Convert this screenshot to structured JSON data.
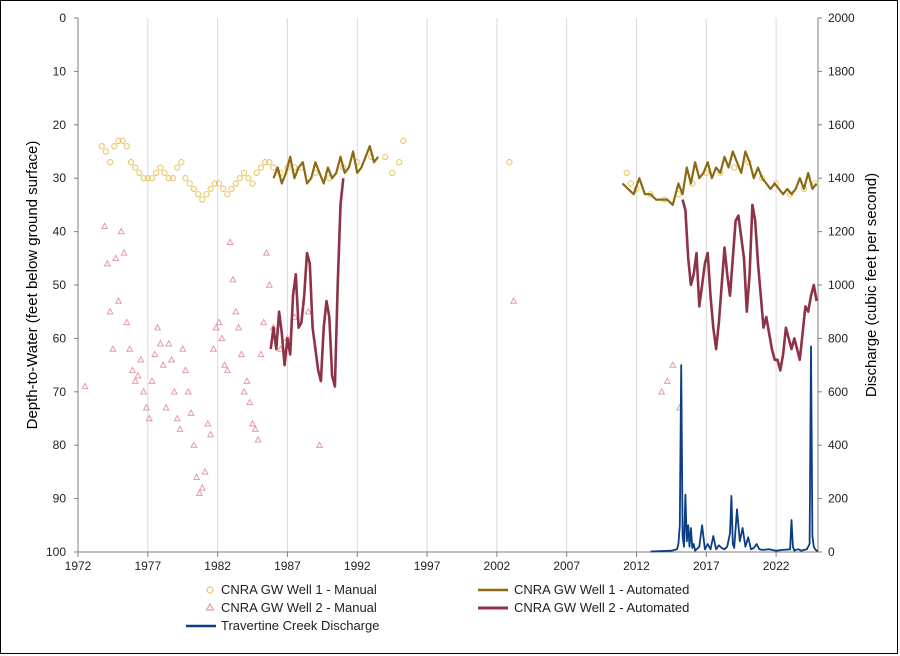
{
  "chart_data": {
    "type": "line",
    "title": "",
    "xlabel": "",
    "ylabel_left": "Depth-to-Water (feet below ground surface)",
    "ylabel_right": "Discharge (cubic feet per second)",
    "xlim": [
      1972,
      2025
    ],
    "x_ticks": [
      "1972",
      "1977",
      "1982",
      "1987",
      "1992",
      "1997",
      "2002",
      "2007",
      "2012",
      "2017",
      "2022"
    ],
    "ylim_left": [
      0,
      100
    ],
    "y_left_inverted": true,
    "y_left_ticks": [
      "0",
      "10",
      "20",
      "30",
      "40",
      "50",
      "60",
      "70",
      "80",
      "90",
      "100"
    ],
    "ylim_right": [
      0,
      2000
    ],
    "y_right_ticks": [
      "0",
      "200",
      "400",
      "600",
      "800",
      "1000",
      "1200",
      "1400",
      "1600",
      "1800",
      "2000"
    ],
    "grid": "vertical",
    "legend_position": "bottom",
    "colors": {
      "well1_manual": "#e8c66a",
      "well1_auto": "#8b6a12",
      "well2_manual": "#e89aa8",
      "well2_auto": "#8e3347",
      "discharge": "#0c3d85",
      "grid": "#d9d9d9"
    },
    "series": [
      {
        "name": "CNRA GW Well 1 - Manual",
        "axis": "left",
        "marker": "circle",
        "x": [
          1973.7,
          1974.0,
          1974.3,
          1974.6,
          1974.9,
          1975.2,
          1975.5,
          1975.8,
          1976.1,
          1976.4,
          1976.7,
          1977.0,
          1977.3,
          1977.6,
          1977.9,
          1978.2,
          1978.5,
          1978.8,
          1979.1,
          1979.4,
          1979.7,
          1980.0,
          1980.3,
          1980.6,
          1980.9,
          1981.2,
          1981.5,
          1981.8,
          1982.1,
          1982.4,
          1982.7,
          1983.0,
          1983.3,
          1983.6,
          1983.9,
          1984.2,
          1984.5,
          1984.8,
          1985.1,
          1985.4,
          1985.7,
          1986.0,
          1986.5,
          1987.0,
          1987.5,
          1988.0,
          1989.0,
          1990.0,
          1991.0,
          1992.0,
          1993.0,
          1994.0,
          1994.5,
          1995.0,
          1995.3,
          2002.9,
          2011.3,
          2011.6,
          2012.0,
          2013.0,
          2014.0,
          2015.0,
          2016.0,
          2017.0,
          2018.0,
          2019.0,
          2020.0,
          2021.0,
          2022.0,
          2023.0,
          2024.0,
          2024.8
        ],
        "y": [
          24,
          25,
          27,
          24,
          23,
          23,
          24,
          27,
          28,
          29,
          30,
          30,
          30,
          29,
          28,
          29,
          30,
          30,
          28,
          27,
          30,
          31,
          32,
          33,
          34,
          33,
          32,
          31,
          31,
          32,
          33,
          32,
          31,
          30,
          29,
          30,
          31,
          29,
          28,
          27,
          27,
          28,
          29,
          28,
          28,
          28,
          29,
          30,
          28,
          27,
          26,
          26,
          29,
          27,
          23,
          27,
          29,
          31,
          32,
          33,
          34,
          33,
          31,
          29,
          29,
          28,
          27,
          30,
          31,
          33,
          32,
          31
        ]
      },
      {
        "name": "CNRA GW Well 1 - Automated",
        "axis": "left",
        "marker": "line",
        "segments": [
          {
            "x": [
              1986.0,
              1986.3,
              1986.6,
              1986.9,
              1987.2,
              1987.5,
              1987.8,
              1988.1,
              1988.4,
              1988.7,
              1989.0,
              1989.3,
              1989.6,
              1989.9,
              1990.2,
              1990.5,
              1990.8,
              1991.1,
              1991.4,
              1991.7,
              1992.0,
              1992.3,
              1992.6,
              1992.9,
              1993.2,
              1993.5
            ],
            "y": [
              30,
              28,
              31,
              29,
              26,
              30,
              28,
              27,
              31,
              30,
              27,
              29,
              31,
              28,
              30,
              29,
              26,
              29,
              28,
              25,
              29,
              28,
              26,
              24,
              27,
              26
            ]
          },
          {
            "x": [
              2011.0,
              2011.4,
              2011.8,
              2012.2,
              2012.6,
              2013.0,
              2013.4,
              2013.8,
              2014.2,
              2014.6,
              2015.0,
              2015.3,
              2015.6,
              2015.9,
              2016.2,
              2016.5,
              2016.8,
              2017.1,
              2017.4,
              2017.7,
              2018.0,
              2018.3,
              2018.6,
              2018.9,
              2019.2,
              2019.5,
              2019.8,
              2020.1,
              2020.4,
              2020.7,
              2021.0,
              2021.3,
              2021.6,
              2021.9,
              2022.2,
              2022.5,
              2022.8,
              2023.1,
              2023.4,
              2023.7,
              2024.0,
              2024.3,
              2024.6,
              2024.9
            ],
            "y": [
              31,
              32,
              33,
              30,
              33,
              33,
              34,
              34,
              34,
              35,
              31,
              33,
              28,
              31,
              27,
              30,
              29,
              27,
              30,
              28,
              29,
              26,
              28,
              25,
              27,
              29,
              25,
              27,
              30,
              28,
              30,
              31,
              32,
              31,
              32,
              33,
              32,
              33,
              32,
              30,
              32,
              29,
              32,
              31
            ]
          }
        ]
      },
      {
        "name": "CNRA GW Well 2 - Manual",
        "axis": "left",
        "marker": "triangle",
        "x": [
          1972.5,
          1973.9,
          1974.1,
          1974.3,
          1974.5,
          1974.7,
          1974.9,
          1975.1,
          1975.3,
          1975.5,
          1975.7,
          1975.9,
          1976.1,
          1976.3,
          1976.5,
          1976.7,
          1976.9,
          1977.1,
          1977.3,
          1977.5,
          1977.7,
          1977.9,
          1978.1,
          1978.3,
          1978.5,
          1978.7,
          1978.9,
          1979.1,
          1979.3,
          1979.5,
          1979.7,
          1979.9,
          1980.1,
          1980.3,
          1980.5,
          1980.7,
          1980.9,
          1981.1,
          1981.3,
          1981.5,
          1981.7,
          1981.9,
          1982.1,
          1982.3,
          1982.5,
          1982.7,
          1982.9,
          1983.1,
          1983.3,
          1983.5,
          1983.7,
          1983.9,
          1984.1,
          1984.3,
          1984.5,
          1984.7,
          1984.9,
          1985.1,
          1985.3,
          1985.5,
          1985.7,
          1986.0,
          1986.5,
          1987.0,
          1987.5,
          1988.5,
          1989.3,
          2003.2,
          2013.8,
          2014.2,
          2014.6,
          2015.1
        ],
        "y": [
          69,
          39,
          46,
          55,
          62,
          45,
          53,
          40,
          44,
          57,
          62,
          66,
          68,
          67,
          64,
          70,
          73,
          75,
          68,
          63,
          58,
          61,
          65,
          73,
          61,
          64,
          70,
          75,
          77,
          62,
          66,
          70,
          74,
          80,
          86,
          89,
          88,
          85,
          76,
          78,
          62,
          58,
          57,
          60,
          65,
          66,
          42,
          49,
          55,
          58,
          63,
          70,
          68,
          72,
          76,
          77,
          79,
          63,
          57,
          44,
          50,
          58,
          62,
          60,
          56,
          55,
          80,
          53,
          70,
          68,
          65,
          73
        ],
        "y_extra_note": ""
      },
      {
        "name": "CNRA GW Well 2 - Automated",
        "axis": "left",
        "marker": "line",
        "segments": [
          {
            "x": [
              1985.8,
              1986.0,
              1986.2,
              1986.4,
              1986.6,
              1986.8,
              1987.0,
              1987.2,
              1987.4,
              1987.6,
              1987.8,
              1988.0,
              1988.2,
              1988.4,
              1988.6,
              1988.8,
              1989.0,
              1989.2,
              1989.4,
              1989.6,
              1989.8,
              1990.0,
              1990.2,
              1990.4,
              1990.6,
              1990.8,
              1991.0
            ],
            "y": [
              62,
              58,
              62,
              55,
              59,
              65,
              60,
              63,
              52,
              48,
              58,
              57,
              52,
              44,
              46,
              58,
              62,
              66,
              68,
              58,
              53,
              56,
              67,
              69,
              50,
              35,
              30
            ]
          },
          {
            "x": [
              2015.3,
              2015.5,
              2015.7,
              2015.9,
              2016.1,
              2016.3,
              2016.5,
              2016.7,
              2016.9,
              2017.1,
              2017.3,
              2017.5,
              2017.7,
              2017.9,
              2018.1,
              2018.3,
              2018.5,
              2018.7,
              2018.9,
              2019.1,
              2019.3,
              2019.5,
              2019.7,
              2019.9,
              2020.1,
              2020.3,
              2020.5,
              2020.7,
              2020.9,
              2021.1,
              2021.3,
              2021.5,
              2021.7,
              2021.9,
              2022.1,
              2022.3,
              2022.5,
              2022.7,
              2022.9,
              2023.1,
              2023.3,
              2023.5,
              2023.7,
              2023.9,
              2024.1,
              2024.3,
              2024.5,
              2024.7,
              2024.9
            ],
            "y": [
              34,
              36,
              45,
              50,
              48,
              44,
              54,
              50,
              46,
              44,
              52,
              58,
              62,
              57,
              50,
              43,
              48,
              52,
              45,
              38,
              37,
              41,
              45,
              55,
              48,
              35,
              38,
              46,
              52,
              58,
              56,
              59,
              62,
              64,
              64,
              66,
              63,
              58,
              60,
              62,
              60,
              62,
              64,
              59,
              54,
              55,
              52,
              50,
              53
            ]
          }
        ]
      },
      {
        "name": "Travertine Creek Discharge",
        "axis": "right",
        "marker": "line",
        "x": [
          2013.0,
          2014.5,
          2014.9,
          2015.0,
          2015.1,
          2015.2,
          2015.3,
          2015.4,
          2015.5,
          2015.6,
          2015.7,
          2015.8,
          2015.9,
          2016.0,
          2016.1,
          2016.2,
          2016.3,
          2016.5,
          2016.7,
          2016.9,
          2017.1,
          2017.3,
          2017.5,
          2017.7,
          2017.9,
          2018.1,
          2018.3,
          2018.5,
          2018.7,
          2018.8,
          2018.9,
          2019.0,
          2019.2,
          2019.4,
          2019.6,
          2019.8,
          2020.0,
          2020.2,
          2020.4,
          2020.6,
          2020.8,
          2021.0,
          2021.5,
          2022.0,
          2022.5,
          2023.0,
          2023.1,
          2023.2,
          2023.3,
          2023.4,
          2023.6,
          2023.8,
          2024.0,
          2024.2,
          2024.4,
          2024.5,
          2024.6,
          2024.7,
          2024.8,
          2024.9,
          2025.0
        ],
        "y": [
          2,
          5,
          10,
          30,
          100,
          700,
          60,
          20,
          215,
          40,
          100,
          20,
          90,
          15,
          30,
          5,
          10,
          20,
          100,
          10,
          30,
          10,
          60,
          10,
          25,
          15,
          10,
          20,
          70,
          210,
          30,
          15,
          160,
          40,
          90,
          20,
          55,
          10,
          15,
          30,
          10,
          8,
          10,
          5,
          8,
          10,
          120,
          20,
          5,
          8,
          10,
          5,
          8,
          10,
          30,
          770,
          60,
          20,
          10,
          5,
          5
        ]
      }
    ],
    "legend": [
      "CNRA GW Well 1 - Manual",
      "CNRA GW Well 1 - Automated",
      "CNRA GW Well 2 - Manual",
      "CNRA GW Well 2 - Automated",
      "Travertine Creek Discharge"
    ]
  }
}
